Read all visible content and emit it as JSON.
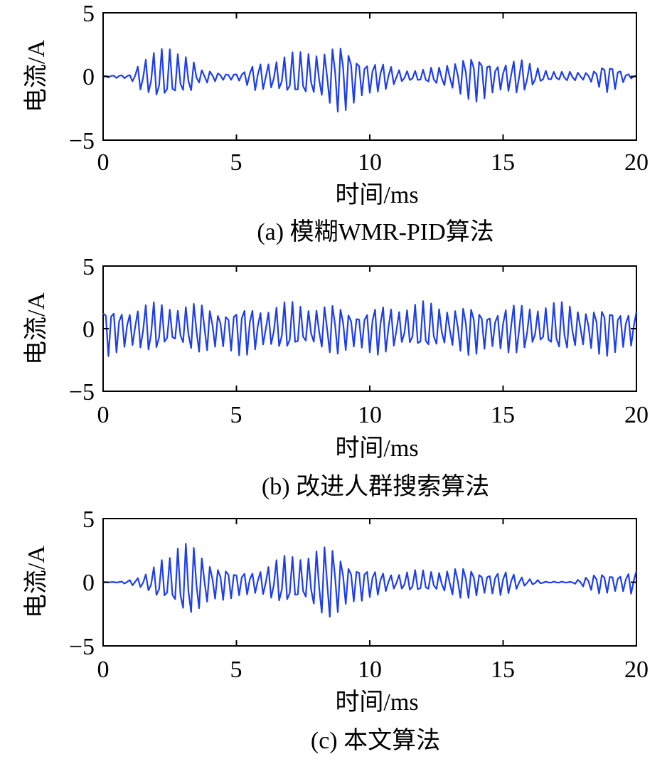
{
  "chart_data": [
    {
      "type": "line",
      "caption": "(a) 模糊WMR-PID算法",
      "xlabel": "时间/ms",
      "ylabel": "电流/A",
      "xlim": [
        0,
        20
      ],
      "ylim": [
        -5,
        5
      ],
      "xticks": [
        0,
        5,
        10,
        15,
        20
      ],
      "yticks": [
        -5,
        0,
        5
      ],
      "xtick_labels": [
        "0",
        "5",
        "10",
        "15",
        "20"
      ],
      "ytick_labels": [
        "−5",
        "0",
        "5"
      ],
      "grid": false,
      "color": "#1f3fe6",
      "series": [
        {
          "signal": "oscillation",
          "dt_ms": 0.1,
          "phase_step": 2.05,
          "envelope": [
            [
              0.0,
              0.05
            ],
            [
              1.0,
              0.2
            ],
            [
              1.4,
              1.8
            ],
            [
              2.2,
              2.2
            ],
            [
              2.7,
              2.7
            ],
            [
              3.2,
              2.3
            ],
            [
              3.6,
              0.6
            ],
            [
              4.5,
              0.4
            ],
            [
              5.2,
              0.4
            ],
            [
              5.7,
              1.2
            ],
            [
              6.5,
              1.8
            ],
            [
              7.4,
              2.0
            ],
            [
              8.0,
              2.6
            ],
            [
              8.8,
              3.0
            ],
            [
              9.5,
              2.6
            ],
            [
              10.3,
              1.4
            ],
            [
              11.0,
              0.7
            ],
            [
              12.0,
              0.6
            ],
            [
              12.6,
              0.8
            ],
            [
              13.4,
              2.1
            ],
            [
              14.0,
              2.0
            ],
            [
              14.8,
              1.7
            ],
            [
              15.6,
              1.5
            ],
            [
              16.2,
              1.0
            ],
            [
              17.0,
              0.4
            ],
            [
              18.0,
              0.4
            ],
            [
              18.4,
              0.8
            ],
            [
              18.8,
              1.4
            ],
            [
              19.2,
              1.0
            ],
            [
              19.6,
              0.4
            ],
            [
              20.0,
              0.1
            ]
          ]
        }
      ]
    },
    {
      "type": "line",
      "caption": "(b) 改进人群搜索算法",
      "xlabel": "时间/ms",
      "ylabel": "电流/A",
      "xlim": [
        0,
        20
      ],
      "ylim": [
        -5,
        5
      ],
      "xticks": [
        0,
        5,
        10,
        15,
        20
      ],
      "yticks": [
        -5,
        0,
        5
      ],
      "xtick_labels": [
        "0",
        "5",
        "10",
        "15",
        "20"
      ],
      "ytick_labels": [
        "−5",
        "0",
        "5"
      ],
      "grid": false,
      "color": "#1f3fe6",
      "series": [
        {
          "signal": "oscillation",
          "dt_ms": 0.1,
          "phase_step": 2.05,
          "envelope": [
            [
              0.0,
              2.2
            ],
            [
              5.0,
              2.2
            ],
            [
              10.0,
              2.2
            ],
            [
              15.0,
              2.2
            ],
            [
              20.0,
              2.2
            ]
          ]
        }
      ]
    },
    {
      "type": "line",
      "caption": "(c) 本文算法",
      "xlabel": "时间/ms",
      "ylabel": "电流/A",
      "xlim": [
        0,
        20
      ],
      "ylim": [
        -5,
        5
      ],
      "xticks": [
        0,
        5,
        10,
        15,
        20
      ],
      "yticks": [
        -5,
        0,
        5
      ],
      "xtick_labels": [
        "0",
        "5",
        "10",
        "15",
        "20"
      ],
      "ytick_labels": [
        "−5",
        "0",
        "5"
      ],
      "grid": false,
      "color": "#1f3fe6",
      "series": [
        {
          "signal": "oscillation",
          "dt_ms": 0.1,
          "phase_step": 2.05,
          "envelope": [
            [
              0.0,
              0.0
            ],
            [
              0.6,
              0.05
            ],
            [
              1.0,
              0.3
            ],
            [
              1.5,
              0.5
            ],
            [
              1.8,
              1.0
            ],
            [
              2.2,
              2.5
            ],
            [
              2.8,
              3.4
            ],
            [
              3.2,
              3.2
            ],
            [
              3.8,
              2.5
            ],
            [
              4.5,
              1.8
            ],
            [
              5.0,
              1.0
            ],
            [
              5.6,
              1.3
            ],
            [
              6.5,
              1.9
            ],
            [
              7.3,
              2.6
            ],
            [
              8.0,
              3.0
            ],
            [
              8.7,
              3.2
            ],
            [
              9.3,
              2.4
            ],
            [
              10.0,
              1.2
            ],
            [
              11.0,
              0.9
            ],
            [
              12.0,
              1.0
            ],
            [
              13.0,
              1.3
            ],
            [
              14.0,
              1.4
            ],
            [
              15.0,
              1.1
            ],
            [
              15.6,
              0.6
            ],
            [
              16.2,
              0.3
            ],
            [
              16.6,
              0.05
            ],
            [
              17.5,
              0.05
            ],
            [
              18.0,
              0.5
            ],
            [
              18.6,
              0.9
            ],
            [
              19.2,
              1.0
            ],
            [
              19.7,
              1.2
            ],
            [
              20.0,
              1.2
            ]
          ]
        }
      ]
    }
  ]
}
